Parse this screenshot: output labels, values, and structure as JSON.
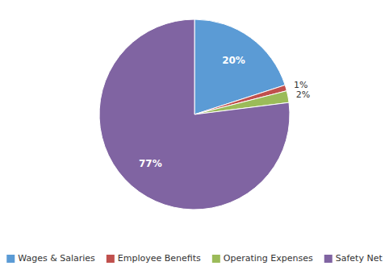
{
  "chart_data": {
    "type": "pie",
    "categories": [
      "Wages & Salaries",
      "Employee Benefits",
      "Operating Expenses",
      "Safety Net"
    ],
    "values": [
      20,
      1,
      2,
      77
    ],
    "value_labels": [
      "20%",
      "1%",
      "2%",
      "77%"
    ],
    "colors": [
      "#5b9bd5",
      "#c0504d",
      "#9bbb59",
      "#8064a2"
    ],
    "data_labels": true,
    "legend": "bottom"
  }
}
